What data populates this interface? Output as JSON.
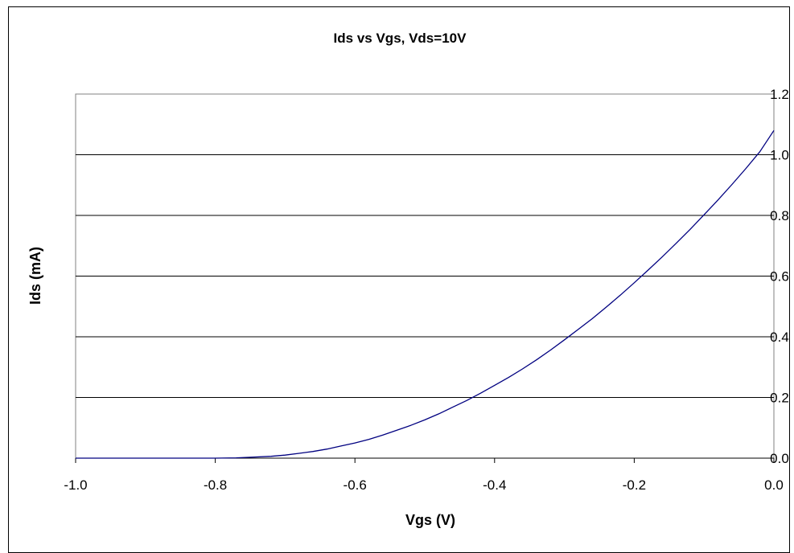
{
  "chart_data": {
    "type": "line",
    "title": "Ids vs Vgs,  Vds=10V",
    "xlabel": "Vgs (V)",
    "ylabel": "Ids (mA)",
    "xlim": [
      -1.0,
      0.0
    ],
    "ylim": [
      0.0,
      1.2
    ],
    "x_ticks": [
      "-1.0",
      "-0.8",
      "-0.6",
      "-0.4",
      "-0.2",
      "0.0"
    ],
    "y_ticks": [
      "0.0",
      "0.2",
      "0.4",
      "0.6",
      "0.8",
      "1.0",
      "1.2"
    ],
    "grid": "horizontal",
    "legend": "none",
    "series": [
      {
        "color": "#000080",
        "x": [
          -1.0,
          -0.9,
          -0.8,
          -0.77,
          -0.75,
          -0.72,
          -0.7,
          -0.68,
          -0.66,
          -0.64,
          -0.62,
          -0.6,
          -0.58,
          -0.56,
          -0.54,
          -0.52,
          -0.5,
          -0.48,
          -0.46,
          -0.44,
          -0.42,
          -0.4,
          -0.38,
          -0.36,
          -0.34,
          -0.32,
          -0.3,
          -0.28,
          -0.26,
          -0.24,
          -0.22,
          -0.2,
          -0.18,
          -0.16,
          -0.14,
          -0.12,
          -0.1,
          -0.08,
          -0.06,
          -0.04,
          -0.02,
          0.0
        ],
        "y": [
          0.0,
          0.0,
          0.0,
          0.001,
          0.003,
          0.006,
          0.01,
          0.016,
          0.022,
          0.03,
          0.04,
          0.05,
          0.062,
          0.076,
          0.092,
          0.108,
          0.126,
          0.146,
          0.168,
          0.19,
          0.214,
          0.24,
          0.266,
          0.294,
          0.324,
          0.356,
          0.39,
          0.425,
          0.46,
          0.498,
          0.537,
          0.578,
          0.62,
          0.663,
          0.708,
          0.754,
          0.802,
          0.851,
          0.902,
          0.955,
          1.01,
          1.08
        ]
      }
    ]
  }
}
